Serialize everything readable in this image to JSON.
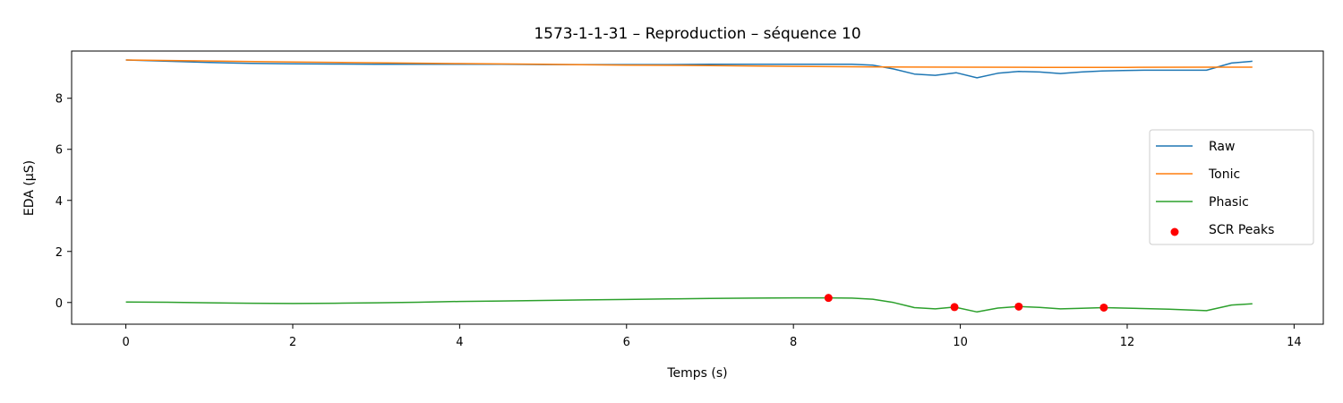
{
  "chart_data": {
    "type": "line",
    "title": "1573-1-1-31 – Reproduction – séquence 10",
    "xlabel": "Temps (s)",
    "ylabel": "EDA (µS)",
    "xlim": [
      -0.65,
      14.35
    ],
    "ylim": [
      -0.85,
      9.85
    ],
    "xticks": [
      0,
      2,
      4,
      6,
      8,
      10,
      12,
      14
    ],
    "yticks": [
      0,
      2,
      4,
      6,
      8
    ],
    "legend_position": "center-right",
    "series": [
      {
        "name": "Raw",
        "color": "#1f77b4",
        "x": [
          0,
          0.5,
          1,
          1.5,
          2,
          2.5,
          3,
          3.5,
          4,
          4.5,
          5,
          5.5,
          6,
          6.5,
          7,
          7.5,
          8,
          8.4,
          8.7,
          8.95,
          9.2,
          9.45,
          9.7,
          9.95,
          10.2,
          10.45,
          10.7,
          10.95,
          11.2,
          11.45,
          11.7,
          11.95,
          12.2,
          12.45,
          12.7,
          12.95,
          13.25,
          13.5
        ],
        "y": [
          9.5,
          9.45,
          9.4,
          9.37,
          9.35,
          9.34,
          9.33,
          9.33,
          9.33,
          9.33,
          9.32,
          9.32,
          9.32,
          9.32,
          9.33,
          9.33,
          9.33,
          9.33,
          9.33,
          9.3,
          9.15,
          8.95,
          8.9,
          9.0,
          8.8,
          8.98,
          9.05,
          9.03,
          8.97,
          9.03,
          9.07,
          9.09,
          9.1,
          9.1,
          9.1,
          9.1,
          9.38,
          9.45
        ]
      },
      {
        "name": "Tonic",
        "color": "#ff7f0e",
        "x": [
          0,
          1,
          2,
          3,
          4,
          5,
          6,
          7,
          8,
          9,
          10,
          11,
          12,
          13,
          13.5
        ],
        "y": [
          9.5,
          9.46,
          9.42,
          9.39,
          9.36,
          9.33,
          9.3,
          9.28,
          9.25,
          9.23,
          9.22,
          9.21,
          9.21,
          9.22,
          9.22
        ]
      },
      {
        "name": "Phasic",
        "color": "#2ca02c",
        "x": [
          0,
          0.5,
          1,
          1.5,
          2,
          2.5,
          3,
          3.5,
          4,
          4.5,
          5,
          5.5,
          6,
          6.5,
          7,
          7.5,
          8,
          8.42,
          8.7,
          8.95,
          9.2,
          9.45,
          9.7,
          9.93,
          10.2,
          10.45,
          10.7,
          10.95,
          11.2,
          11.45,
          11.72,
          11.95,
          12.5,
          12.95,
          13.25,
          13.5
        ],
        "y": [
          0.02,
          0.01,
          -0.01,
          -0.03,
          -0.04,
          -0.03,
          -0.01,
          0.01,
          0.04,
          0.06,
          0.08,
          0.1,
          0.12,
          0.14,
          0.16,
          0.17,
          0.18,
          0.18,
          0.17,
          0.13,
          0.0,
          -0.2,
          -0.25,
          -0.18,
          -0.37,
          -0.22,
          -0.16,
          -0.19,
          -0.25,
          -0.23,
          -0.2,
          -0.22,
          -0.26,
          -0.32,
          -0.1,
          -0.05
        ]
      }
    ],
    "scatter": {
      "name": "SCR Peaks",
      "color": "#ff0000",
      "x": [
        8.42,
        9.93,
        10.7,
        11.72
      ],
      "y": [
        0.18,
        -0.18,
        -0.16,
        -0.2
      ]
    }
  }
}
